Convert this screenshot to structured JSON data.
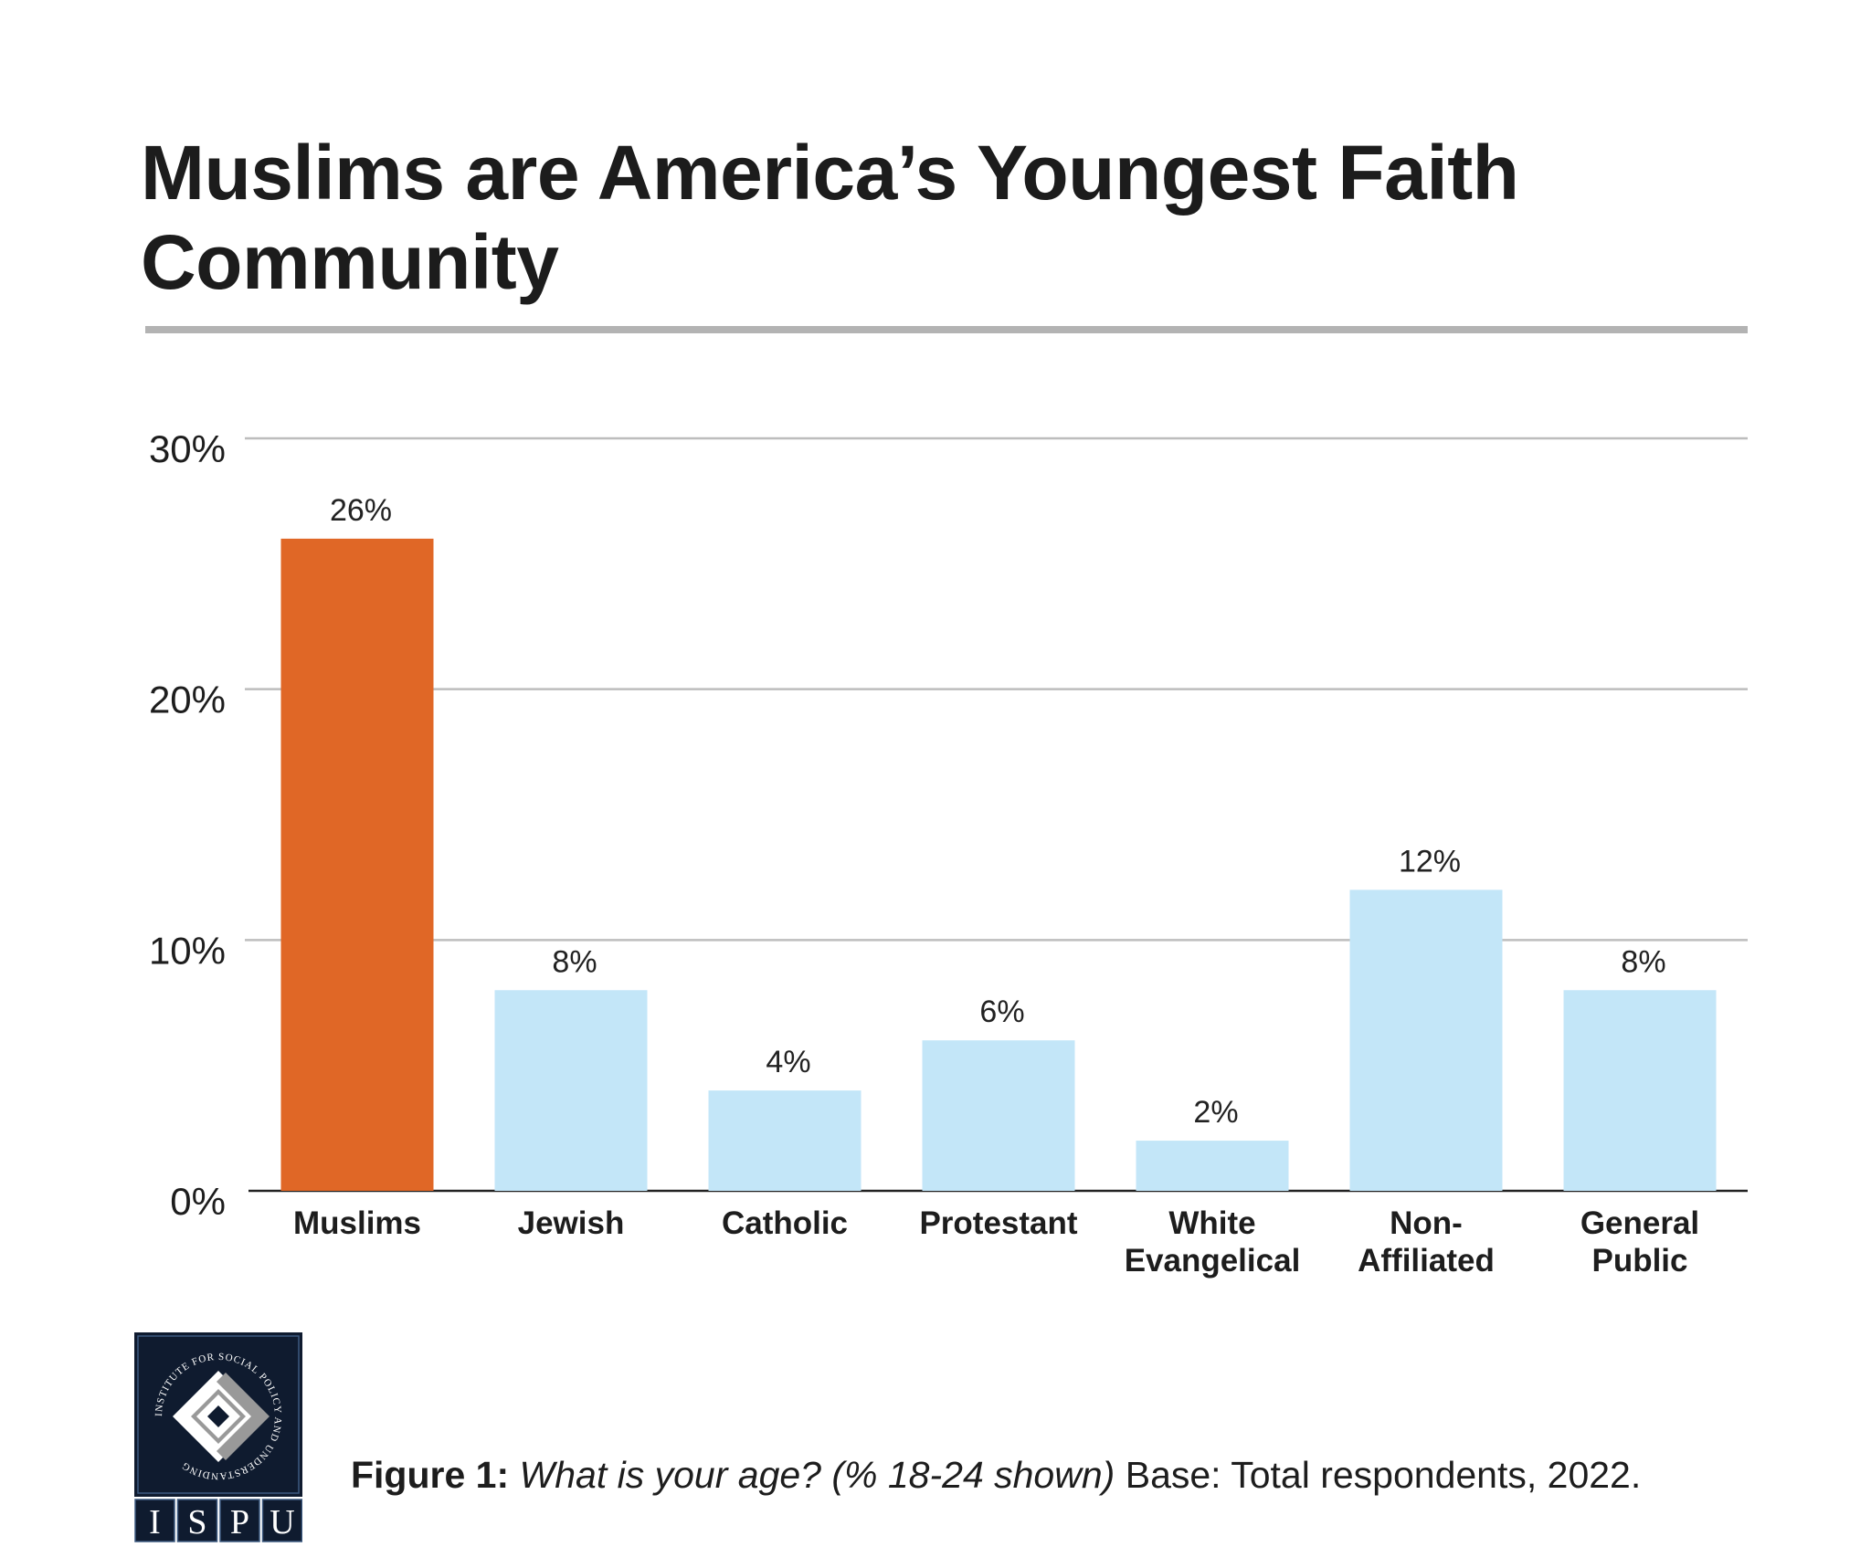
{
  "title": "Muslims are America’s Youngest Faith Community",
  "caption": {
    "label": "Figure 1:",
    "question": "What is your age? (% 18-24 shown)",
    "base": "Base: Total respondents, 2022."
  },
  "logo": {
    "ring_text": "INSTITUTE FOR SOCIAL POLICY AND UNDERSTANDING",
    "letters": [
      "I",
      "S",
      "P",
      "U"
    ]
  },
  "colors": {
    "highlight": "#E06726",
    "bar": "#C3E6F8",
    "grid": "#bdbdbd",
    "logo_bg": "#0F1B2F"
  },
  "chart_data": {
    "type": "bar",
    "title": "Muslims are America’s Youngest Faith Community",
    "categories": [
      [
        "Muslims"
      ],
      [
        "Jewish"
      ],
      [
        "Catholic"
      ],
      [
        "Protestant"
      ],
      [
        "White",
        "Evangelical"
      ],
      [
        "Non-",
        "Affiliated"
      ],
      [
        "General",
        "Public"
      ]
    ],
    "values": [
      26,
      8,
      4,
      6,
      2,
      12,
      8
    ],
    "value_labels": [
      "26%",
      "8%",
      "4%",
      "6%",
      "2%",
      "12%",
      "8%"
    ],
    "highlight_index": 0,
    "ylim": [
      0,
      30
    ],
    "yticks": [
      0,
      10,
      20,
      30
    ],
    "ytick_labels": [
      "0%",
      "10%",
      "20%",
      "30%"
    ],
    "grid": true,
    "xlabel": "",
    "ylabel": ""
  }
}
